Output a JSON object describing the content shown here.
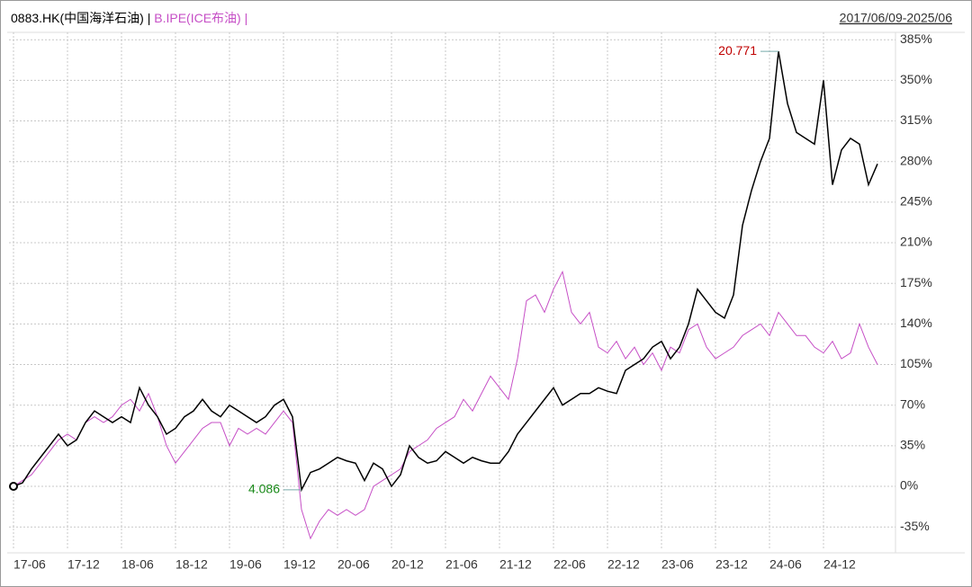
{
  "chart_data": {
    "type": "line",
    "date_range": "2017/06/09-2025/06",
    "categories": [
      "17-06",
      null,
      null,
      null,
      null,
      null,
      "17-12",
      null,
      null,
      null,
      null,
      null,
      "18-06",
      null,
      null,
      null,
      null,
      null,
      "18-12",
      null,
      null,
      null,
      null,
      null,
      "19-06",
      null,
      null,
      null,
      null,
      null,
      "19-12",
      null,
      null,
      null,
      null,
      null,
      "20-06",
      null,
      null,
      null,
      null,
      null,
      "20-12",
      null,
      null,
      null,
      null,
      null,
      "21-06",
      null,
      null,
      null,
      null,
      null,
      "21-12",
      null,
      null,
      null,
      null,
      null,
      "22-06",
      null,
      null,
      null,
      null,
      null,
      "22-12",
      null,
      null,
      null,
      null,
      null,
      "23-06",
      null,
      null,
      null,
      null,
      null,
      "23-12",
      null,
      null,
      null,
      null,
      null,
      "24-06",
      null,
      null,
      null,
      null,
      null,
      "24-12",
      null,
      null,
      null,
      null,
      null,
      null
    ],
    "series": [
      {
        "name": "0883.HK(中国海洋石油)",
        "color": "#000000",
        "values": [
          0,
          3,
          15,
          25,
          35,
          45,
          35,
          40,
          55,
          65,
          60,
          55,
          60,
          55,
          85,
          70,
          60,
          45,
          50,
          60,
          65,
          75,
          65,
          60,
          70,
          65,
          60,
          55,
          60,
          70,
          75,
          60,
          -3,
          12,
          15,
          20,
          25,
          22,
          20,
          5,
          20,
          15,
          0,
          10,
          35,
          25,
          20,
          22,
          30,
          25,
          20,
          25,
          22,
          20,
          20,
          30,
          45,
          55,
          65,
          75,
          85,
          70,
          75,
          80,
          80,
          85,
          82,
          80,
          100,
          105,
          110,
          120,
          125,
          110,
          120,
          140,
          170,
          160,
          150,
          145,
          165,
          225,
          255,
          280,
          300,
          375,
          330,
          305,
          300,
          295,
          350,
          260,
          290,
          300,
          295,
          260,
          278
        ]
      },
      {
        "name": "B.IPE(ICE布油)",
        "color": "#c64fc6",
        "values": [
          0,
          5,
          10,
          20,
          30,
          40,
          45,
          40,
          55,
          60,
          55,
          60,
          70,
          75,
          65,
          80,
          60,
          35,
          20,
          30,
          40,
          50,
          55,
          55,
          35,
          50,
          45,
          50,
          45,
          55,
          65,
          55,
          -20,
          -45,
          -30,
          -20,
          -25,
          -20,
          -25,
          -20,
          0,
          5,
          10,
          15,
          30,
          35,
          40,
          50,
          55,
          60,
          75,
          65,
          80,
          95,
          85,
          75,
          110,
          160,
          165,
          150,
          170,
          185,
          150,
          140,
          150,
          120,
          115,
          125,
          110,
          120,
          105,
          115,
          100,
          120,
          115,
          135,
          140,
          120,
          110,
          115,
          120,
          130,
          135,
          140,
          130,
          150,
          140,
          130,
          130,
          120,
          115,
          125,
          110,
          115,
          140,
          120,
          105
        ]
      }
    ],
    "annotations": [
      {
        "text": "20.771",
        "color": "#c00000"
      },
      {
        "text": "4.086",
        "color": "#1a8a1a"
      }
    ],
    "ylim": [
      -55,
      396
    ],
    "yticks": [
      {
        "value": -35,
        "label": "-35%"
      },
      {
        "value": 0,
        "label": "0%"
      },
      {
        "value": 35,
        "label": "35%"
      },
      {
        "value": 70,
        "label": "70%"
      },
      {
        "value": 105,
        "label": "105%"
      },
      {
        "value": 140,
        "label": "140%"
      },
      {
        "value": 175,
        "label": "175%"
      },
      {
        "value": 210,
        "label": "210%"
      },
      {
        "value": 245,
        "label": "245%"
      },
      {
        "value": 280,
        "label": "280%"
      },
      {
        "value": 315,
        "label": "315%"
      },
      {
        "value": 350,
        "label": "350%"
      },
      {
        "value": 385,
        "label": "385%"
      }
    ],
    "grid": true
  }
}
